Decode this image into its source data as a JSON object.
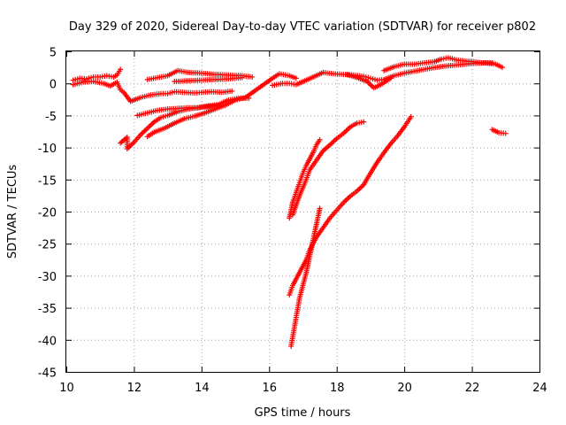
{
  "chart_data": {
    "type": "scatter",
    "title": "Day 329 of 2020, Sidereal Day-to-day VTEC variation (SDTVAR) for receiver p802",
    "xlabel": "GPS time / hours",
    "ylabel": "SDTVAR / TECUs",
    "xlim": [
      10,
      24
    ],
    "ylim": [
      -45,
      5
    ],
    "xticks": [
      10,
      12,
      14,
      16,
      18,
      20,
      22,
      24
    ],
    "yticks": [
      5,
      0,
      -5,
      -10,
      -15,
      -20,
      -25,
      -30,
      -35,
      -40,
      -45
    ],
    "grid": true,
    "marker": "+",
    "marker_color": "#ff0000",
    "series": [
      {
        "name": "",
        "points": [
          [
            10.2,
            0.5
          ],
          [
            10.4,
            0.8
          ],
          [
            10.6,
            0.7
          ],
          [
            10.8,
            1.0
          ],
          [
            11.0,
            1.0
          ],
          [
            11.2,
            1.2
          ],
          [
            11.4,
            1.0
          ],
          [
            11.5,
            1.3
          ],
          [
            11.6,
            2.2
          ],
          [
            10.2,
            -0.2
          ],
          [
            10.5,
            0.2
          ],
          [
            10.8,
            0.3
          ],
          [
            11.1,
            0.0
          ],
          [
            11.3,
            -0.4
          ],
          [
            11.5,
            0.2
          ],
          [
            11.6,
            -1.0
          ],
          [
            11.7,
            -1.4
          ],
          [
            11.9,
            -2.8
          ],
          [
            12.2,
            -2.2
          ],
          [
            12.5,
            -1.8
          ],
          [
            12.8,
            -1.6
          ],
          [
            13.0,
            -1.6
          ],
          [
            13.2,
            -1.3
          ],
          [
            13.5,
            -1.4
          ],
          [
            13.8,
            -1.5
          ],
          [
            14.0,
            -1.4
          ],
          [
            14.3,
            -1.3
          ],
          [
            14.6,
            -1.4
          ],
          [
            14.9,
            -1.2
          ],
          [
            12.4,
            0.6
          ],
          [
            12.7,
            0.9
          ],
          [
            13.0,
            1.2
          ],
          [
            13.3,
            2.0
          ],
          [
            13.6,
            1.7
          ],
          [
            14.0,
            1.6
          ],
          [
            14.4,
            1.4
          ],
          [
            14.8,
            1.3
          ],
          [
            15.2,
            1.2
          ],
          [
            15.5,
            1.0
          ],
          [
            13.2,
            0.3
          ],
          [
            13.6,
            0.4
          ],
          [
            14.0,
            0.5
          ],
          [
            14.4,
            0.6
          ],
          [
            14.8,
            0.7
          ],
          [
            15.2,
            0.9
          ],
          [
            12.1,
            -5.0
          ],
          [
            12.4,
            -4.6
          ],
          [
            12.7,
            -4.2
          ],
          [
            13.0,
            -4.0
          ],
          [
            13.3,
            -3.9
          ],
          [
            13.6,
            -3.8
          ],
          [
            13.9,
            -3.8
          ],
          [
            14.2,
            -3.5
          ],
          [
            14.5,
            -3.3
          ],
          [
            14.8,
            -2.6
          ],
          [
            15.1,
            -2.3
          ],
          [
            15.4,
            -2.3
          ],
          [
            11.6,
            -9.3
          ],
          [
            11.8,
            -8.4
          ],
          [
            11.8,
            -10.2
          ],
          [
            12.0,
            -9.2
          ],
          [
            12.2,
            -8.0
          ],
          [
            12.4,
            -7.0
          ],
          [
            12.6,
            -6.0
          ],
          [
            12.8,
            -5.3
          ],
          [
            13.0,
            -5.0
          ],
          [
            13.3,
            -4.4
          ],
          [
            13.6,
            -4.0
          ],
          [
            14.0,
            -3.7
          ],
          [
            14.4,
            -3.5
          ],
          [
            14.6,
            -3.4
          ],
          [
            12.4,
            -8.3
          ],
          [
            12.6,
            -7.6
          ],
          [
            12.9,
            -7.0
          ],
          [
            13.2,
            -6.2
          ],
          [
            13.5,
            -5.5
          ],
          [
            13.8,
            -5.1
          ],
          [
            14.1,
            -4.6
          ],
          [
            14.4,
            -4.0
          ],
          [
            14.7,
            -3.4
          ],
          [
            15.0,
            -2.6
          ],
          [
            15.3,
            -2.2
          ],
          [
            16.1,
            0.8
          ],
          [
            16.3,
            1.5
          ],
          [
            16.6,
            1.2
          ],
          [
            16.8,
            0.8
          ],
          [
            16.1,
            -0.3
          ],
          [
            16.4,
            0.0
          ],
          [
            16.6,
            0.0
          ],
          [
            16.8,
            -0.2
          ],
          [
            17.6,
            1.7
          ],
          [
            17.9,
            1.5
          ],
          [
            18.2,
            1.4
          ],
          [
            18.5,
            1.3
          ],
          [
            18.8,
            1.1
          ],
          [
            19.0,
            0.8
          ],
          [
            19.2,
            0.5
          ],
          [
            19.4,
            0.6
          ],
          [
            19.7,
            1.2
          ],
          [
            20.0,
            1.6
          ],
          [
            20.4,
            2.0
          ],
          [
            20.8,
            2.4
          ],
          [
            21.2,
            2.7
          ],
          [
            21.6,
            2.9
          ],
          [
            22.0,
            3.1
          ],
          [
            22.4,
            3.2
          ],
          [
            22.7,
            3.0
          ],
          [
            22.9,
            2.5
          ],
          [
            18.3,
            1.4
          ],
          [
            18.6,
            0.9
          ],
          [
            18.9,
            0.3
          ],
          [
            19.1,
            -0.7
          ],
          [
            19.3,
            -0.2
          ],
          [
            19.6,
            0.8
          ],
          [
            19.4,
            2.0
          ],
          [
            19.7,
            2.6
          ],
          [
            20.0,
            3.0
          ],
          [
            20.3,
            3.0
          ],
          [
            20.6,
            3.2
          ],
          [
            20.9,
            3.4
          ],
          [
            21.1,
            3.8
          ],
          [
            21.3,
            4.0
          ],
          [
            21.6,
            3.6
          ],
          [
            22.0,
            3.4
          ],
          [
            22.3,
            3.2
          ],
          [
            22.6,
            3.2
          ],
          [
            22.6,
            -7.2
          ],
          [
            22.8,
            -7.7
          ],
          [
            23.0,
            -7.8
          ],
          [
            16.6,
            -21.0
          ],
          [
            16.7,
            -18.5
          ],
          [
            16.8,
            -17.0
          ],
          [
            16.9,
            -15.5
          ],
          [
            17.0,
            -14.0
          ],
          [
            17.1,
            -12.8
          ],
          [
            17.2,
            -11.8
          ],
          [
            17.3,
            -10.8
          ],
          [
            17.4,
            -9.6
          ],
          [
            17.5,
            -8.8
          ],
          [
            16.7,
            -20.5
          ],
          [
            16.9,
            -17.5
          ],
          [
            17.1,
            -15.0
          ],
          [
            17.2,
            -13.5
          ],
          [
            17.4,
            -12.0
          ],
          [
            17.6,
            -10.5
          ],
          [
            17.8,
            -9.6
          ],
          [
            18.0,
            -8.6
          ],
          [
            18.2,
            -7.8
          ],
          [
            18.4,
            -6.8
          ],
          [
            18.6,
            -6.2
          ],
          [
            18.8,
            -6.0
          ],
          [
            16.6,
            -33.0
          ],
          [
            16.7,
            -31.5
          ],
          [
            16.8,
            -30.5
          ],
          [
            16.9,
            -29.5
          ],
          [
            17.0,
            -28.5
          ],
          [
            17.1,
            -27.5
          ],
          [
            17.2,
            -26.0
          ],
          [
            17.3,
            -25.0
          ],
          [
            17.4,
            -24.0
          ],
          [
            17.6,
            -22.5
          ],
          [
            17.8,
            -21.0
          ],
          [
            18.0,
            -19.8
          ],
          [
            18.2,
            -18.6
          ],
          [
            18.4,
            -17.6
          ],
          [
            18.6,
            -16.8
          ],
          [
            18.8,
            -15.8
          ],
          [
            19.0,
            -14.0
          ],
          [
            19.2,
            -12.3
          ],
          [
            19.4,
            -10.8
          ],
          [
            19.6,
            -9.4
          ],
          [
            19.8,
            -8.2
          ],
          [
            20.0,
            -6.8
          ],
          [
            20.2,
            -5.2
          ],
          [
            16.65,
            -41.0
          ],
          [
            16.7,
            -39.5
          ],
          [
            16.75,
            -38.0
          ],
          [
            16.8,
            -36.5
          ],
          [
            16.85,
            -35.0
          ],
          [
            16.9,
            -33.5
          ],
          [
            17.0,
            -31.5
          ],
          [
            17.1,
            -29.5
          ],
          [
            17.2,
            -27.0
          ],
          [
            17.3,
            -24.5
          ],
          [
            17.4,
            -22.0
          ],
          [
            17.5,
            -19.5
          ]
        ]
      }
    ]
  }
}
